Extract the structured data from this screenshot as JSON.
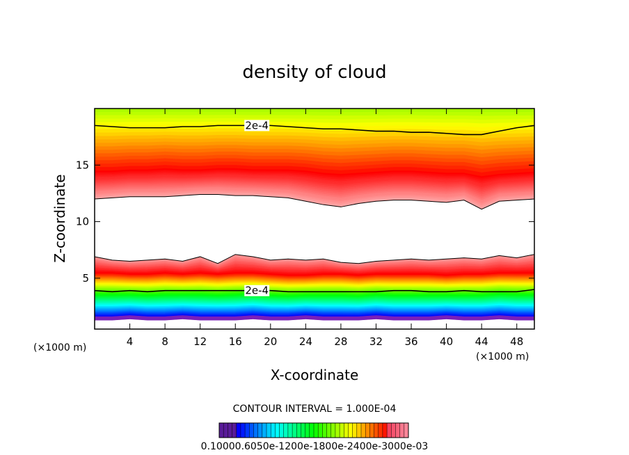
{
  "chart_data": {
    "type": "contour",
    "title": "density of cloud",
    "xlabel": "X-coordinate",
    "ylabel": "Z-coordinate",
    "x_unit_label": "(×1000 m)",
    "x_unit_label_right": "(×1000 m)",
    "xlim": [
      0,
      50
    ],
    "ylim": [
      0.5,
      20
    ],
    "x_ticks": [
      4,
      8,
      12,
      16,
      20,
      24,
      28,
      32,
      36,
      40,
      44,
      48
    ],
    "y_ticks": [
      5,
      10,
      15
    ],
    "contour_interval_text": "CONTOUR INTERVAL = 1.000E-04",
    "contour_label": "2e-4",
    "colorbar_labels_text": "0.10000.6050e-1200e-1800e-2400e-3000e-03",
    "colorbar_levels": [
      0.0,
      0.06,
      0.12,
      0.18,
      0.24,
      0.3
    ],
    "colorbar_levels_unit": "e-3",
    "upper_layer": {
      "bottom_z": [
        12.0,
        12.1,
        12.2,
        12.2,
        12.2,
        12.3,
        12.4,
        12.4,
        12.3,
        12.3,
        12.2,
        12.1,
        11.8,
        11.5,
        11.3,
        11.6,
        11.8,
        11.9,
        11.9,
        11.8,
        11.7,
        11.9,
        11.1,
        11.8,
        11.9,
        12.0
      ],
      "peak_z": [
        14.5,
        14.5,
        14.6,
        14.6,
        14.7,
        14.6,
        14.6,
        14.7,
        14.7,
        14.6,
        14.6,
        14.6,
        14.5,
        14.3,
        14.2,
        14.3,
        14.4,
        14.5,
        14.5,
        14.4,
        14.3,
        14.3,
        14.0,
        14.2,
        14.3,
        14.4
      ],
      "contour_2e4_z": [
        18.5,
        18.4,
        18.3,
        18.3,
        18.3,
        18.4,
        18.4,
        18.5,
        18.5,
        18.5,
        18.5,
        18.4,
        18.3,
        18.2,
        18.2,
        18.1,
        18.0,
        18.0,
        17.9,
        17.9,
        17.8,
        17.7,
        17.7,
        18.0,
        18.3,
        18.5
      ]
    },
    "lower_layer": {
      "top_z": [
        6.9,
        6.6,
        6.5,
        6.6,
        6.7,
        6.5,
        6.9,
        6.3,
        7.1,
        6.9,
        6.6,
        6.7,
        6.6,
        6.7,
        6.4,
        6.3,
        6.5,
        6.6,
        6.7,
        6.6,
        6.7,
        6.8,
        6.7,
        7.0,
        6.8,
        7.1
      ],
      "peak_z": [
        5.5,
        5.5,
        5.4,
        5.4,
        5.5,
        5.4,
        5.5,
        5.4,
        5.5,
        5.5,
        5.4,
        5.3,
        5.3,
        5.4,
        5.4,
        5.3,
        5.4,
        5.4,
        5.4,
        5.4,
        5.3,
        5.4,
        5.4,
        5.5,
        5.5,
        5.5
      ],
      "contour_2e4_z": [
        3.9,
        3.8,
        3.9,
        3.8,
        3.9,
        3.9,
        3.9,
        3.9,
        3.9,
        3.9,
        3.9,
        3.8,
        3.8,
        3.8,
        3.8,
        3.8,
        3.8,
        3.9,
        3.9,
        3.8,
        3.8,
        3.9,
        3.8,
        3.8,
        3.8,
        4.0
      ],
      "bottom_z": [
        1.6,
        1.6,
        1.7,
        1.6,
        1.6,
        1.7,
        1.6,
        1.6,
        1.6,
        1.7,
        1.6,
        1.6,
        1.7,
        1.6,
        1.6,
        1.6,
        1.7,
        1.6,
        1.6,
        1.6,
        1.7,
        1.6,
        1.6,
        1.7,
        1.6,
        1.6
      ]
    }
  }
}
